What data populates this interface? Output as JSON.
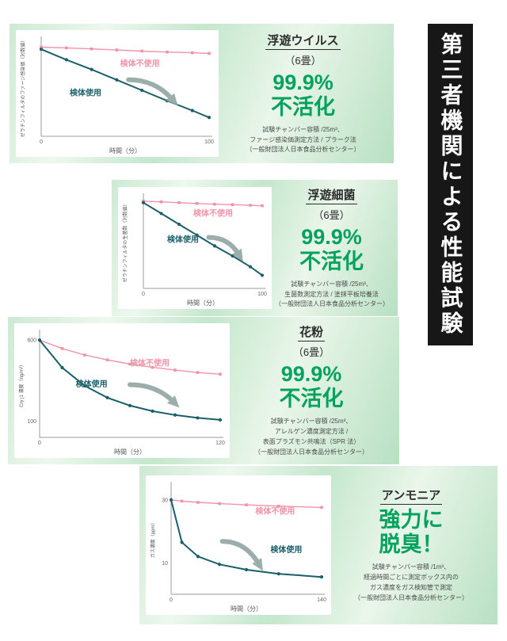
{
  "side_banner": {
    "text": "第三者機関による性能試験",
    "bg": "#171717",
    "fg": "#ffffff"
  },
  "colors": {
    "accent_green": "#00a25e",
    "line_no_specimen": "#f093a8",
    "line_specimen": "#1a5f6a",
    "arrow": "#93a8a6"
  },
  "panels": [
    {
      "title": "浮遊ウイルス",
      "subtitle": "（6畳）",
      "result": [
        "99.9%",
        "不活化"
      ],
      "notes": "試験チャンバー容積 /25m³、\nファージ感染価測定方法 / プラーク法\n（一般財団法人日本食品分析センター）"
    },
    {
      "title": "浮遊細菌",
      "subtitle": "（6畳）",
      "result": [
        "99.9%",
        "不活化"
      ],
      "notes": "試験チャンバー容積 /25m³、\n生菌数測定方法 / 塗抹平板培養法\n（一般財団法人日本食品分析センター）"
    },
    {
      "title": "花粉",
      "subtitle": "（6畳）",
      "result": [
        "99.9%",
        "不活化"
      ],
      "notes": "試験チャンバー容積 /25m³、\nアレルゲン濃度測定方法 /\n表面プラズモン共鳴法（SPR 法）\n（一般財団法人日本食品分析センター）"
    },
    {
      "title": "アンモニア",
      "subtitle": "",
      "result": [
        "強力に",
        "脱臭！"
      ],
      "notes": "試験チャンバー容積 /1m³、\n経過時間ごとに測定ボックス内の\nガス濃度をガス検知管で測定\n（一般財団法人日本食品分析センター）"
    }
  ],
  "chart_data": [
    {
      "type": "line",
      "title": "浮遊ウイルス（6畳）",
      "xlabel": "時間（分）",
      "ylabel": "ゼラチンフィルタのファージ感染価（対数値）",
      "x": [
        0,
        15,
        30,
        45,
        60,
        75,
        90,
        100
      ],
      "ylim": [
        0,
        7
      ],
      "x_ticks": [
        {
          "v": 0,
          "label": "0"
        },
        {
          "v": 100,
          "label": "100"
        }
      ],
      "y_ticks": [],
      "arrow": {
        "x1": 0.52,
        "y1": 0.42,
        "x2": 0.78,
        "y2": 0.62
      },
      "series": [
        {
          "name": "検体不使用",
          "color": "#f093a8",
          "marker": "square",
          "width": 1.4,
          "label_fx": 0.47,
          "label_fy": 0.28,
          "values": [
            6.4,
            6.35,
            6.28,
            6.2,
            6.12,
            6.05,
            6.0,
            5.95
          ]
        },
        {
          "name": "検体使用",
          "color": "#1a5f6a",
          "marker": "circle",
          "width": 2,
          "label_fx": 0.17,
          "label_fy": 0.58,
          "values": [
            6.25,
            5.5,
            4.8,
            4.05,
            3.3,
            2.55,
            1.85,
            1.35
          ]
        }
      ]
    },
    {
      "type": "line",
      "title": "浮遊細菌（6畳）",
      "xlabel": "時間（分）",
      "ylabel": "ゼラチンフィルタの生菌数（対数値）",
      "x": [
        0,
        15,
        30,
        45,
        60,
        75,
        90,
        100
      ],
      "ylim": [
        0,
        6
      ],
      "x_ticks": [
        {
          "v": 0,
          "label": "0"
        },
        {
          "v": 100,
          "label": "100"
        }
      ],
      "y_ticks": [],
      "arrow": {
        "x1": 0.55,
        "y1": 0.45,
        "x2": 0.8,
        "y2": 0.63
      },
      "series": [
        {
          "name": "検体不使用",
          "color": "#f093a8",
          "marker": "square",
          "width": 1.4,
          "label_fx": 0.42,
          "label_fy": 0.22,
          "values": [
            5.65,
            5.6,
            5.55,
            5.5,
            5.45,
            5.42,
            5.38,
            5.35
          ]
        },
        {
          "name": "検体使用",
          "color": "#1a5f6a",
          "marker": "circle",
          "width": 2,
          "label_fx": 0.2,
          "label_fy": 0.5,
          "values": [
            5.55,
            4.85,
            4.15,
            3.45,
            2.75,
            2.1,
            1.4,
            0.85
          ]
        }
      ]
    },
    {
      "type": "line",
      "title": "花粉（6畳）",
      "xlabel": "時間（分）",
      "ylabel": "Cry j1 濃度（ng/m³）",
      "x": [
        0,
        15,
        30,
        45,
        60,
        75,
        90,
        105,
        120
      ],
      "ylim": [
        0,
        650
      ],
      "x_ticks": [
        {
          "v": 0,
          "label": "0"
        },
        {
          "v": 120,
          "label": "120"
        }
      ],
      "y_ticks": [
        {
          "v": 600,
          "label": "600"
        },
        {
          "v": 100,
          "label": "100"
        }
      ],
      "arrow": {
        "x1": 0.5,
        "y1": 0.5,
        "x2": 0.74,
        "y2": 0.66
      },
      "series": [
        {
          "name": "検体不使用",
          "color": "#f093a8",
          "marker": "square",
          "width": 1.4,
          "label_fx": 0.5,
          "label_fy": 0.32,
          "values": [
            600,
            548,
            508,
            478,
            452,
            432,
            415,
            400,
            390
          ]
        },
        {
          "name": "検体使用",
          "color": "#1a5f6a",
          "marker": "circle",
          "width": 2,
          "label_fx": 0.2,
          "label_fy": 0.52,
          "values": [
            600,
            430,
            318,
            245,
            196,
            162,
            138,
            120,
            108
          ]
        }
      ]
    },
    {
      "type": "line",
      "title": "アンモニア",
      "xlabel": "時間（分）",
      "ylabel": "ガス濃度（ppm）",
      "x": [
        0,
        10,
        25,
        45,
        70,
        100,
        140
      ],
      "ylim": [
        0,
        35
      ],
      "x_ticks": [
        {
          "v": 0,
          "label": "0"
        },
        {
          "v": 140,
          "label": "140"
        }
      ],
      "y_ticks": [
        {
          "v": 30,
          "label": "30"
        },
        {
          "v": 10,
          "label": "10"
        }
      ],
      "arrow": {
        "x1": 0.34,
        "y1": 0.52,
        "x2": 0.58,
        "y2": 0.72
      },
      "series": [
        {
          "name": "検体不使用",
          "color": "#f093a8",
          "marker": "square",
          "width": 1.4,
          "label_fx": 0.56,
          "label_fy": 0.27,
          "values": [
            30,
            29.6,
            29.2,
            28.8,
            28.4,
            28.0,
            27.6
          ]
        },
        {
          "name": "検体使用",
          "color": "#1a5f6a",
          "marker": "circle",
          "width": 2,
          "label_fx": 0.66,
          "label_fy": 0.62,
          "values": [
            30,
            16.5,
            12,
            9.5,
            7.8,
            6.5,
            5.5
          ]
        }
      ]
    }
  ]
}
